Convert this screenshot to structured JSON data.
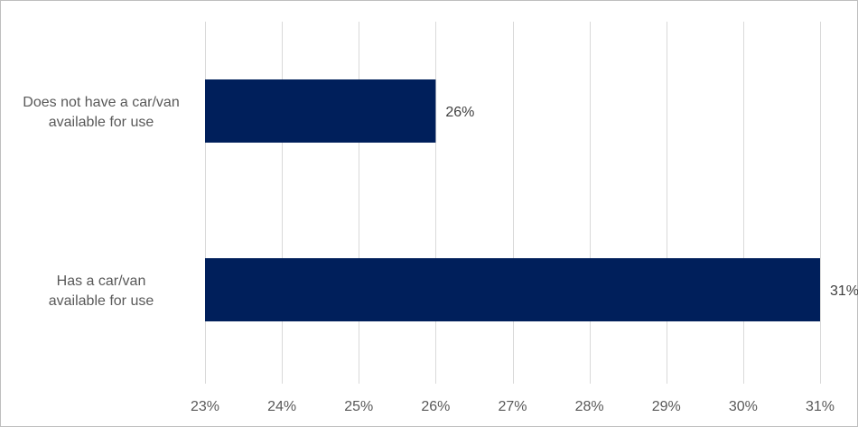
{
  "chart_data": {
    "type": "bar",
    "orientation": "horizontal",
    "categories": [
      [
        "Does not have a car/van",
        "available for use"
      ],
      [
        "Has a car/van",
        "available for use"
      ]
    ],
    "values": [
      26,
      31
    ],
    "data_labels": [
      "26%",
      "31%"
    ],
    "xlim": [
      23,
      31
    ],
    "xticks": [
      23,
      24,
      25,
      26,
      27,
      28,
      29,
      30,
      31
    ],
    "xtick_labels": [
      "23%",
      "24%",
      "25%",
      "26%",
      "27%",
      "28%",
      "29%",
      "30%",
      "31%"
    ],
    "grid": "vertical",
    "legend": "none",
    "bar_color": "#001f5b",
    "grid_color": "#d9d9d9"
  }
}
